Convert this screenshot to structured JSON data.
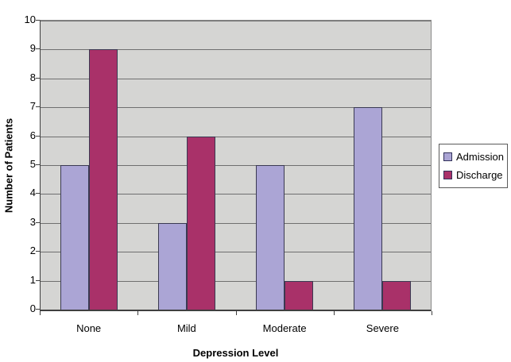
{
  "chart_data": {
    "type": "bar",
    "title": "",
    "categories": [
      "None",
      "Mild",
      "Moderate",
      "Severe"
    ],
    "series": [
      {
        "name": "Admission",
        "values": [
          5,
          3,
          5,
          7
        ],
        "color": "#ABA5D5"
      },
      {
        "name": "Discharge",
        "values": [
          9,
          6,
          1,
          1
        ],
        "color": "#A93169"
      }
    ],
    "xlabel": "Depression Level",
    "ylabel": "Number of Patients",
    "ylim": [
      0,
      10
    ],
    "ytick_step": 1,
    "ytick_labels": [
      "0",
      "1",
      "2",
      "3",
      "4",
      "5",
      "6",
      "7",
      "8",
      "9",
      "10"
    ],
    "grid": true,
    "legend_position": "right",
    "colors": {
      "plot_background": "#D5D5D3",
      "gridline": "#6F6F6F",
      "axis_line": "#3F3F3F",
      "bar_border": "#3A3A52",
      "page_background": "#FFFFFF",
      "legend_border": "#5A5A5A",
      "text": "#000000"
    }
  }
}
